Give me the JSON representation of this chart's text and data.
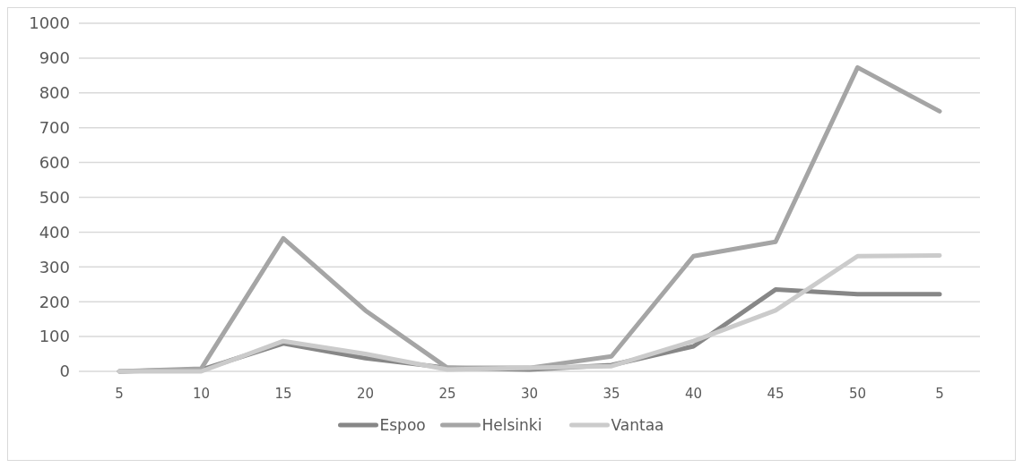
{
  "chart_data": {
    "type": "line",
    "categories": [
      "5",
      "10",
      "15",
      "20",
      "25",
      "30",
      "35",
      "40",
      "45",
      "50",
      "5"
    ],
    "series": [
      {
        "name": "Espoo",
        "color": "#878787",
        "values": [
          0,
          5,
          80,
          38,
          10,
          5,
          18,
          72,
          235,
          222,
          222
        ]
      },
      {
        "name": "Helsinki",
        "color": "#a5a5a5",
        "values": [
          0,
          8,
          382,
          175,
          10,
          10,
          43,
          331,
          372,
          873,
          747
        ]
      },
      {
        "name": "Vantaa",
        "color": "#cbcbcb",
        "values": [
          0,
          0,
          87,
          50,
          5,
          10,
          15,
          87,
          175,
          331,
          333
        ]
      }
    ],
    "ylim": [
      0,
      1000
    ],
    "yticks": [
      0,
      100,
      200,
      300,
      400,
      500,
      600,
      700,
      800,
      900,
      1000
    ],
    "grid": "y",
    "legend": "bottom",
    "marker": "none",
    "line_style": "solid"
  }
}
